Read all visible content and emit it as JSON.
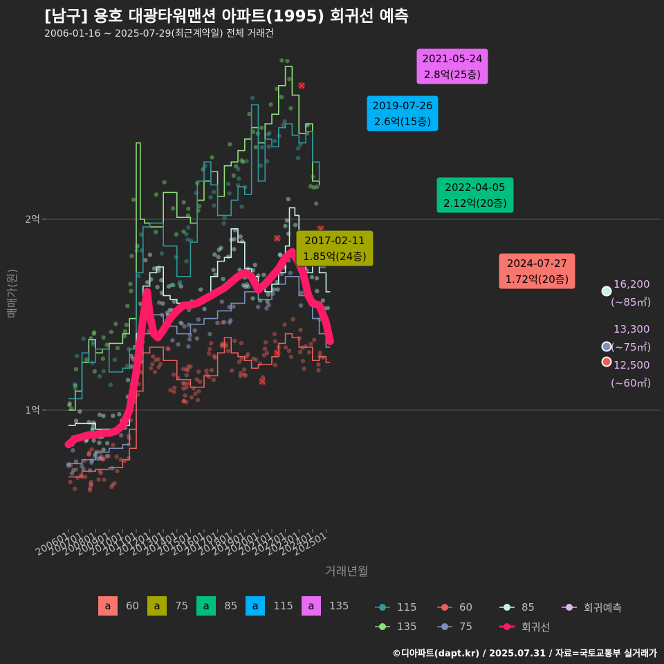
{
  "header": {
    "title": "[남구] 용호 대광타워맨션 아파트(1995) 회귀선 예측",
    "subtitle": "2006-01-16 ~ 2025-07-29(최근계약일) 전체 거래건"
  },
  "axes": {
    "ylabel": "매매가(원)",
    "xlabel": "거래년월",
    "yticks": [
      "1억",
      "2억"
    ],
    "xticks": [
      "200601",
      "200701",
      "200801",
      "200901",
      "201001",
      "201101",
      "201201",
      "201301",
      "201401",
      "201501",
      "201601",
      "201701",
      "201801",
      "201901",
      "202001",
      "202101",
      "202201",
      "202301",
      "202401",
      "202501"
    ]
  },
  "credit": "©디아파트(dapt.kr) / 2025.07.31 / 자료=국토교통부 실거래가",
  "colors": {
    "background": "#262626",
    "grid": "#555555",
    "s60": "#f8766d",
    "s75": "#a3a500",
    "s85": "#00bf7d",
    "s115": "#00b0f6",
    "s135": "#e76bf3",
    "line60": "#e8605a",
    "line75": "#7b8fc0",
    "line85": "#c8f0ee",
    "line115": "#2e9a9a",
    "line135": "#8ee07a",
    "regression": "#ff1a66",
    "forecast": "#e2b6ee"
  },
  "legend_area": {
    "items": [
      {
        "key": "a",
        "label": "60",
        "color": "#f8766d"
      },
      {
        "key": "a",
        "label": "75",
        "color": "#a3a500"
      },
      {
        "key": "a",
        "label": "85",
        "color": "#00bf7d"
      },
      {
        "key": "a",
        "label": "115",
        "color": "#00b0f6"
      },
      {
        "key": "a",
        "label": "135",
        "color": "#e76bf3"
      }
    ]
  },
  "legend_series": {
    "rows": [
      [
        {
          "label": "115",
          "color": "#2e9a9a"
        },
        {
          "label": "60",
          "color": "#e8605a"
        },
        {
          "label": "85",
          "color": "#c8f0ee"
        },
        {
          "label": "회귀예측",
          "color": "#e2b6ee"
        }
      ],
      [
        {
          "label": "135",
          "color": "#8ee07a"
        },
        {
          "label": "75",
          "color": "#7b8fc0"
        },
        {
          "label": "회귀선",
          "color": "#ff1a66"
        }
      ]
    ]
  },
  "chart_data": {
    "type": "line",
    "title": "[남구] 용호 대광타워맨션 아파트(1995) 회귀선 예측",
    "subtitle": "2006-01-16 ~ 2025-07-29(최근계약일) 전체 거래건",
    "xlabel": "거래년월",
    "ylabel": "매매가(원)",
    "x_range": [
      2005.8,
      2025.7
    ],
    "y_range_eok": [
      0.4,
      2.5
    ],
    "y_ticks_eok": [
      1,
      2
    ],
    "grid": true,
    "legend_position": "bottom",
    "series": [
      {
        "name": "60",
        "unit": "억",
        "x": [
          2006.0,
          2007.0,
          2008.0,
          2009.0,
          2010.0,
          2010.5,
          2011.0,
          2011.5,
          2012.0,
          2013.0,
          2014.0,
          2015.0,
          2016.0,
          2017.0,
          2017.5,
          2018.0,
          2018.5,
          2019.0,
          2019.5,
          2020.0,
          2021.0,
          2021.5,
          2022.0,
          2022.5,
          2023.0,
          2024.0,
          2024.5,
          2025.0,
          2025.3
        ],
        "y": [
          0.65,
          0.68,
          0.69,
          0.7,
          0.74,
          0.8,
          1.1,
          1.3,
          1.33,
          1.26,
          1.16,
          1.12,
          1.18,
          1.3,
          1.38,
          1.3,
          1.28,
          1.26,
          1.22,
          1.24,
          1.28,
          1.35,
          1.4,
          1.38,
          1.33,
          1.26,
          1.28,
          1.25,
          1.25
        ]
      },
      {
        "name": "75",
        "unit": "억",
        "x": [
          2006.0,
          2007.0,
          2008.0,
          2009.0,
          2010.0,
          2010.5,
          2011.0,
          2011.5,
          2012.0,
          2013.0,
          2014.0,
          2015.0,
          2016.0,
          2017.0,
          2018.0,
          2019.0,
          2020.0,
          2021.0,
          2022.0,
          2023.0,
          2024.0,
          2024.5,
          2025.0,
          2025.3
        ],
        "y": [
          0.72,
          0.74,
          0.78,
          0.8,
          0.82,
          0.9,
          1.25,
          1.4,
          1.5,
          1.44,
          1.4,
          1.45,
          1.48,
          1.52,
          1.56,
          1.62,
          1.58,
          1.66,
          1.7,
          1.6,
          1.48,
          1.4,
          1.33,
          1.33
        ]
      },
      {
        "name": "85",
        "unit": "억",
        "x": [
          2006.0,
          2006.5,
          2007.0,
          2008.0,
          2009.0,
          2010.0,
          2010.5,
          2011.0,
          2011.5,
          2012.0,
          2012.5,
          2013.0,
          2013.5,
          2014.0,
          2015.0,
          2016.0,
          2016.5,
          2017.0,
          2017.5,
          2018.0,
          2018.5,
          2019.0,
          2019.5,
          2020.0,
          2020.5,
          2021.0,
          2021.5,
          2022.0,
          2022.3,
          2022.7,
          2023.0,
          2023.5,
          2024.0,
          2024.5,
          2025.0,
          2025.3
        ],
        "y": [
          0.92,
          0.93,
          0.93,
          0.9,
          0.9,
          0.92,
          1.1,
          1.4,
          1.65,
          1.72,
          1.75,
          1.6,
          1.58,
          1.56,
          1.56,
          1.58,
          1.7,
          1.78,
          1.8,
          1.95,
          1.88,
          1.74,
          1.7,
          1.66,
          1.62,
          1.66,
          1.72,
          1.86,
          2.06,
          2.02,
          1.8,
          1.72,
          1.76,
          1.72,
          1.62,
          1.62
        ]
      },
      {
        "name": "115",
        "unit": "억",
        "x": [
          2006.0,
          2007.0,
          2007.5,
          2008.0,
          2009.0,
          2010.0,
          2010.5,
          2011.0,
          2011.5,
          2012.0,
          2013.0,
          2014.0,
          2015.0,
          2015.5,
          2016.0,
          2016.5,
          2017.0,
          2018.0,
          2018.5,
          2019.0,
          2019.5,
          2020.0,
          2020.5,
          2021.0,
          2021.5,
          2022.0,
          2022.5,
          2023.0,
          2023.5,
          2024.0,
          2024.5
        ],
        "y": [
          1.06,
          1.3,
          1.25,
          1.32,
          1.2,
          1.22,
          1.32,
          1.72,
          1.96,
          1.98,
          1.86,
          1.7,
          1.88,
          2.2,
          2.3,
          2.18,
          2.02,
          2.1,
          2.17,
          2.13,
          2.6,
          2.2,
          2.42,
          2.38,
          2.48,
          2.5,
          2.44,
          2.4,
          2.46,
          2.3,
          2.2
        ]
      },
      {
        "name": "135",
        "unit": "억",
        "x": [
          2006.0,
          2006.5,
          2007.0,
          2007.5,
          2008.0,
          2008.5,
          2009.0,
          2009.5,
          2010.0,
          2010.5,
          2011.0,
          2011.3,
          2011.6,
          2012.0,
          2013.0,
          2014.0,
          2015.0,
          2015.5,
          2016.0,
          2016.5,
          2017.0,
          2017.5,
          2018.0,
          2018.5,
          2019.0,
          2019.5,
          2020.0,
          2020.5,
          2021.0,
          2021.5,
          2022.0,
          2022.5,
          2023.0,
          2023.5,
          2024.0,
          2024.5
        ],
        "y": [
          1.0,
          1.1,
          1.25,
          1.37,
          1.3,
          1.32,
          1.35,
          1.35,
          1.4,
          1.48,
          2.4,
          2.0,
          1.98,
          1.96,
          2.14,
          2.01,
          1.98,
          2.1,
          2.2,
          2.25,
          2.12,
          2.28,
          2.3,
          2.36,
          2.42,
          2.48,
          2.4,
          2.5,
          2.55,
          2.7,
          2.8,
          2.65,
          2.45,
          2.5,
          2.2,
          2.18
        ]
      },
      {
        "name": "회귀선",
        "unit": "억",
        "x": [
          2006.0,
          2006.5,
          2007.0,
          2007.5,
          2008.0,
          2008.5,
          2009.0,
          2009.5,
          2010.0,
          2010.5,
          2011.0,
          2011.5,
          2011.8,
          2012.0,
          2012.3,
          2012.6,
          2013.0,
          2013.5,
          2014.0,
          2014.5,
          2015.0,
          2015.5,
          2016.0,
          2016.5,
          2017.0,
          2017.5,
          2018.0,
          2018.5,
          2019.0,
          2019.5,
          2020.0,
          2020.5,
          2021.0,
          2021.5,
          2022.0,
          2022.5,
          2023.0,
          2023.3,
          2023.7,
          2024.0,
          2024.5,
          2025.0,
          2025.3
        ],
        "y": [
          0.82,
          0.85,
          0.86,
          0.87,
          0.87,
          0.88,
          0.88,
          0.89,
          0.92,
          1.0,
          1.2,
          1.48,
          1.62,
          1.5,
          1.4,
          1.38,
          1.42,
          1.48,
          1.52,
          1.55,
          1.55,
          1.56,
          1.58,
          1.6,
          1.62,
          1.64,
          1.67,
          1.7,
          1.72,
          1.7,
          1.63,
          1.66,
          1.7,
          1.74,
          1.8,
          1.83,
          1.77,
          1.72,
          1.6,
          1.56,
          1.55,
          1.46,
          1.36
        ]
      },
      {
        "name": "회귀예측",
        "unit": "억",
        "x": [
          2025.5,
          2025.5,
          2025.5
        ],
        "y": [
          1.62,
          1.33,
          1.25
        ]
      }
    ],
    "annotations": [
      {
        "date": "2017-02-11",
        "text": "1.85억(24층)",
        "size": "75"
      },
      {
        "date": "2019-07-26",
        "text": "2.6억(15층)",
        "size": "115"
      },
      {
        "date": "2021-05-24",
        "text": "2.8억(25층)",
        "size": "135"
      },
      {
        "date": "2022-04-05",
        "text": "2.12억(20층)",
        "size": "85"
      },
      {
        "date": "2024-07-27",
        "text": "1.72억(20층)",
        "size": "60"
      }
    ],
    "forecast_labels": [
      {
        "value": "16,200",
        "size": "(~85㎡)"
      },
      {
        "value": "13,300",
        "size": "(~75㎡)"
      },
      {
        "value": "12,500",
        "size": "(~60㎡)"
      }
    ]
  }
}
